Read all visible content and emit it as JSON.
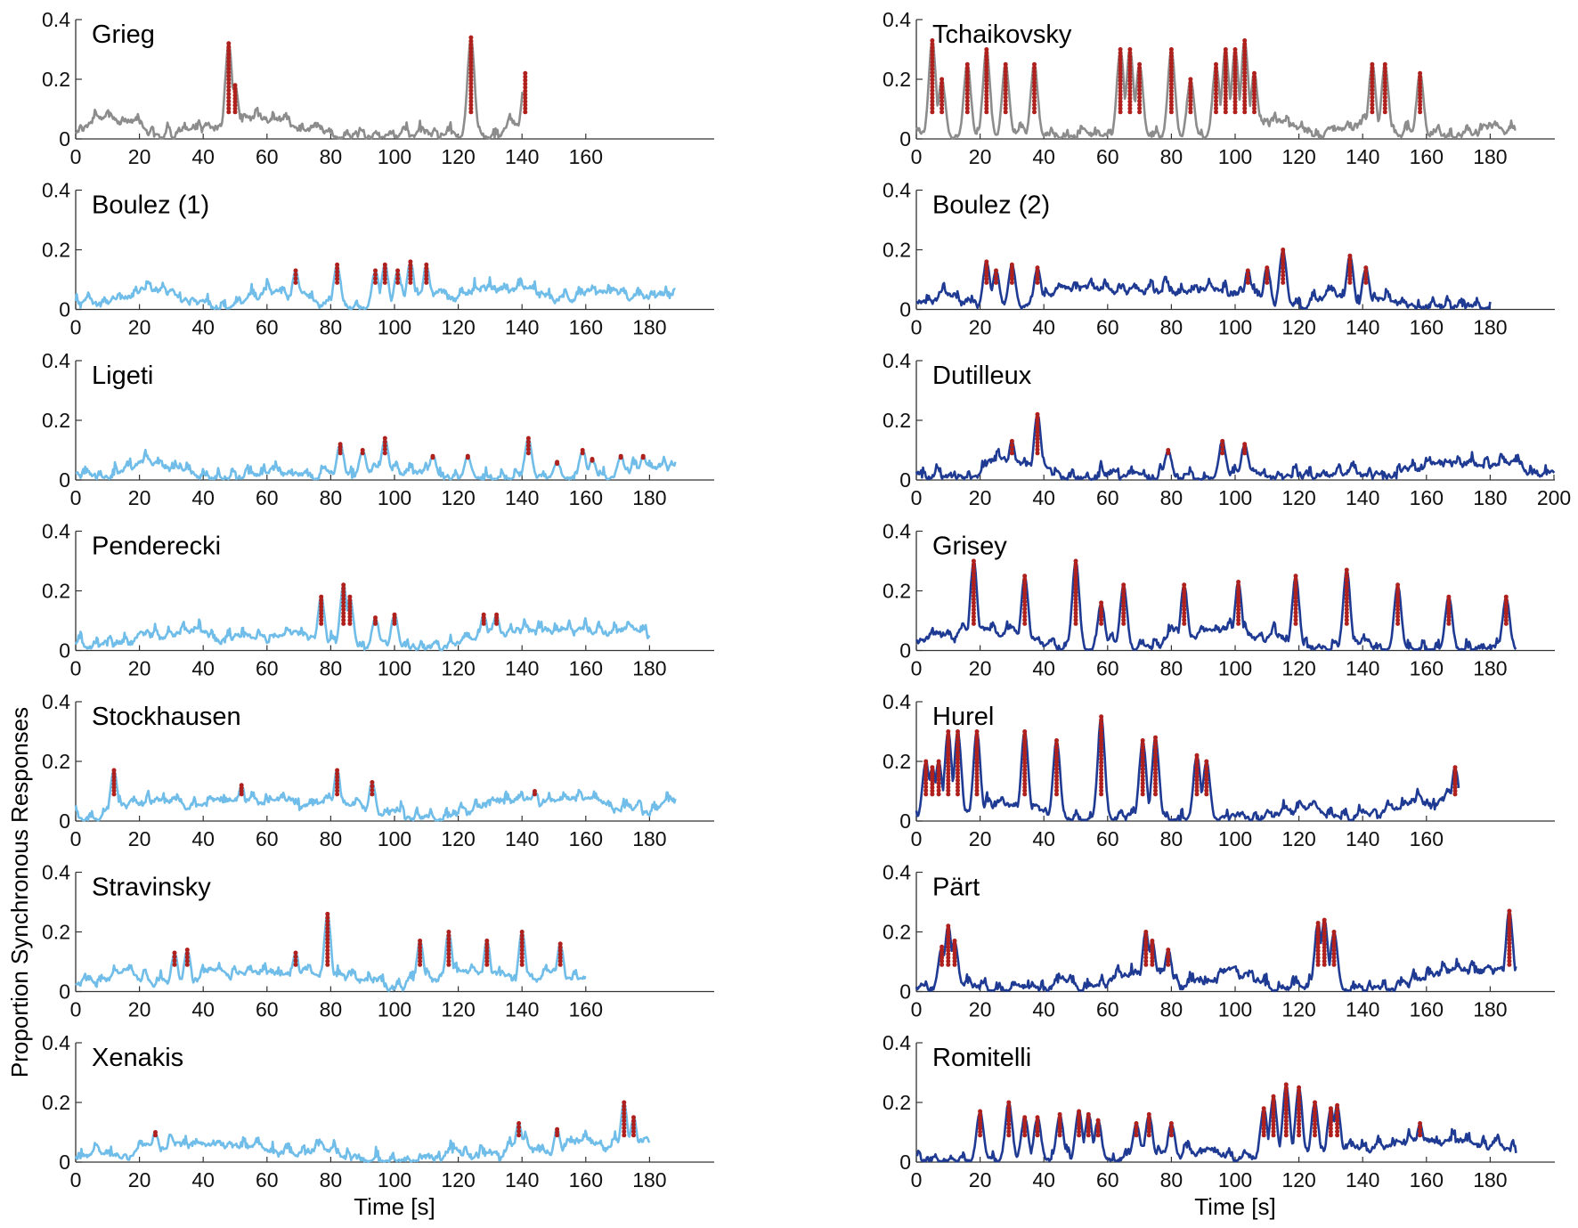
{
  "figure": {
    "ylabel": "Proportion Synchronous Responses",
    "xlabel": "Time [s]"
  },
  "colors": {
    "grey": "#8c8c8c",
    "light_blue": "#6fbde8",
    "dark_blue": "#1f3a93",
    "peak_marker": "#b0201c",
    "axis": "#333333"
  },
  "chart_data": [
    {
      "type": "line",
      "title": "Grieg",
      "color": "grey",
      "duration": 140,
      "ylim": [
        0,
        0.4
      ],
      "yticks": [
        "0.4",
        "0.2",
        "0"
      ],
      "xticks": [
        "0",
        "20",
        "40",
        "60",
        "80",
        "100",
        "120",
        "140",
        "160"
      ],
      "peaks": [
        {
          "t": 48,
          "v": 0.32
        },
        {
          "t": 50,
          "v": 0.18
        },
        {
          "t": 124,
          "v": 0.34
        },
        {
          "t": 141,
          "v": 0.22
        }
      ]
    },
    {
      "type": "line",
      "title": "Tchaikovsky",
      "color": "grey",
      "duration": 188,
      "ylim": [
        0,
        0.4
      ],
      "yticks": [
        "0.4",
        "0.2",
        "0"
      ],
      "xticks": [
        "0",
        "20",
        "40",
        "60",
        "80",
        "100",
        "120",
        "140",
        "160",
        "180"
      ],
      "peaks": [
        {
          "t": 5,
          "v": 0.33
        },
        {
          "t": 8,
          "v": 0.2
        },
        {
          "t": 16,
          "v": 0.25
        },
        {
          "t": 22,
          "v": 0.3
        },
        {
          "t": 28,
          "v": 0.25
        },
        {
          "t": 37,
          "v": 0.25
        },
        {
          "t": 64,
          "v": 0.3
        },
        {
          "t": 67,
          "v": 0.3
        },
        {
          "t": 70,
          "v": 0.25
        },
        {
          "t": 80,
          "v": 0.3
        },
        {
          "t": 86,
          "v": 0.2
        },
        {
          "t": 94,
          "v": 0.25
        },
        {
          "t": 97,
          "v": 0.3
        },
        {
          "t": 100,
          "v": 0.3
        },
        {
          "t": 103,
          "v": 0.33
        },
        {
          "t": 106,
          "v": 0.22
        },
        {
          "t": 143,
          "v": 0.25
        },
        {
          "t": 147,
          "v": 0.25
        },
        {
          "t": 158,
          "v": 0.22
        }
      ]
    },
    {
      "type": "line",
      "title": "Boulez (1)",
      "color": "light_blue",
      "duration": 188,
      "ylim": [
        0,
        0.4
      ],
      "yticks": [
        "0.4",
        "0.2",
        "0"
      ],
      "xticks": [
        "0",
        "20",
        "40",
        "60",
        "80",
        "100",
        "120",
        "140",
        "160",
        "180"
      ],
      "peaks": [
        {
          "t": 69,
          "v": 0.13
        },
        {
          "t": 82,
          "v": 0.15
        },
        {
          "t": 94,
          "v": 0.13
        },
        {
          "t": 97,
          "v": 0.15
        },
        {
          "t": 101,
          "v": 0.13
        },
        {
          "t": 105,
          "v": 0.16
        },
        {
          "t": 110,
          "v": 0.15
        }
      ]
    },
    {
      "type": "line",
      "title": "Boulez (2)",
      "color": "dark_blue",
      "duration": 180,
      "ylim": [
        0,
        0.4
      ],
      "yticks": [
        "0.4",
        "0.2",
        "0"
      ],
      "xticks": [
        "0",
        "20",
        "40",
        "60",
        "80",
        "100",
        "120",
        "140",
        "160",
        "180"
      ],
      "peaks": [
        {
          "t": 22,
          "v": 0.16
        },
        {
          "t": 25,
          "v": 0.13
        },
        {
          "t": 30,
          "v": 0.15
        },
        {
          "t": 38,
          "v": 0.14
        },
        {
          "t": 104,
          "v": 0.13
        },
        {
          "t": 110,
          "v": 0.14
        },
        {
          "t": 115,
          "v": 0.2
        },
        {
          "t": 136,
          "v": 0.18
        },
        {
          "t": 141,
          "v": 0.14
        }
      ]
    },
    {
      "type": "line",
      "title": "Ligeti",
      "color": "light_blue",
      "duration": 188,
      "ylim": [
        0,
        0.4
      ],
      "yticks": [
        "0.4",
        "0.2",
        "0"
      ],
      "xticks": [
        "0",
        "20",
        "40",
        "60",
        "80",
        "100",
        "120",
        "140",
        "160",
        "180"
      ],
      "peaks": [
        {
          "t": 83,
          "v": 0.12
        },
        {
          "t": 90,
          "v": 0.1
        },
        {
          "t": 97,
          "v": 0.14
        },
        {
          "t": 112,
          "v": 0.08
        },
        {
          "t": 123,
          "v": 0.08
        },
        {
          "t": 142,
          "v": 0.14
        },
        {
          "t": 151,
          "v": 0.06
        },
        {
          "t": 159,
          "v": 0.1
        },
        {
          "t": 162,
          "v": 0.07
        },
        {
          "t": 171,
          "v": 0.08
        },
        {
          "t": 178,
          "v": 0.08
        }
      ]
    },
    {
      "type": "line",
      "title": "Dutilleux",
      "color": "dark_blue",
      "duration": 200,
      "ylim": [
        0,
        0.4
      ],
      "yticks": [
        "0.4",
        "0.2",
        "0"
      ],
      "xticks": [
        "0",
        "20",
        "40",
        "60",
        "80",
        "100",
        "120",
        "140",
        "160",
        "180",
        "200"
      ],
      "peaks": [
        {
          "t": 30,
          "v": 0.13
        },
        {
          "t": 38,
          "v": 0.22
        },
        {
          "t": 79,
          "v": 0.1
        },
        {
          "t": 96,
          "v": 0.13
        },
        {
          "t": 103,
          "v": 0.12
        }
      ]
    },
    {
      "type": "line",
      "title": "Penderecki",
      "color": "light_blue",
      "duration": 180,
      "ylim": [
        0,
        0.4
      ],
      "yticks": [
        "0.4",
        "0.2",
        "0"
      ],
      "xticks": [
        "0",
        "20",
        "40",
        "60",
        "80",
        "100",
        "120",
        "140",
        "160",
        "180"
      ],
      "peaks": [
        {
          "t": 77,
          "v": 0.18
        },
        {
          "t": 84,
          "v": 0.22
        },
        {
          "t": 86,
          "v": 0.18
        },
        {
          "t": 94,
          "v": 0.11
        },
        {
          "t": 100,
          "v": 0.12
        },
        {
          "t": 128,
          "v": 0.12
        },
        {
          "t": 132,
          "v": 0.12
        }
      ]
    },
    {
      "type": "line",
      "title": "Grisey",
      "color": "dark_blue",
      "duration": 188,
      "ylim": [
        0,
        0.4
      ],
      "yticks": [
        "0.4",
        "0.2",
        "0"
      ],
      "xticks": [
        "0",
        "20",
        "40",
        "60",
        "80",
        "100",
        "120",
        "140",
        "160",
        "180"
      ],
      "peaks": [
        {
          "t": 18,
          "v": 0.3
        },
        {
          "t": 34,
          "v": 0.25
        },
        {
          "t": 50,
          "v": 0.3
        },
        {
          "t": 58,
          "v": 0.16
        },
        {
          "t": 65,
          "v": 0.22
        },
        {
          "t": 84,
          "v": 0.22
        },
        {
          "t": 101,
          "v": 0.23
        },
        {
          "t": 119,
          "v": 0.25
        },
        {
          "t": 135,
          "v": 0.27
        },
        {
          "t": 151,
          "v": 0.22
        },
        {
          "t": 167,
          "v": 0.18
        },
        {
          "t": 185,
          "v": 0.18
        }
      ]
    },
    {
      "type": "line",
      "title": "Stockhausen",
      "color": "light_blue",
      "duration": 188,
      "ylim": [
        0,
        0.4
      ],
      "yticks": [
        "0.4",
        "0.2",
        "0"
      ],
      "xticks": [
        "0",
        "20",
        "40",
        "60",
        "80",
        "100",
        "120",
        "140",
        "160",
        "180"
      ],
      "peaks": [
        {
          "t": 12,
          "v": 0.17
        },
        {
          "t": 52,
          "v": 0.12
        },
        {
          "t": 82,
          "v": 0.17
        },
        {
          "t": 93,
          "v": 0.13
        },
        {
          "t": 144,
          "v": 0.1
        }
      ]
    },
    {
      "type": "line",
      "title": "Hurel",
      "color": "dark_blue",
      "duration": 170,
      "ylim": [
        0,
        0.4
      ],
      "yticks": [
        "0.4",
        "0.2",
        "0"
      ],
      "xticks": [
        "0",
        "20",
        "40",
        "60",
        "80",
        "100",
        "120",
        "140",
        "160"
      ],
      "peaks": [
        {
          "t": 3,
          "v": 0.2
        },
        {
          "t": 5,
          "v": 0.18
        },
        {
          "t": 7,
          "v": 0.2
        },
        {
          "t": 10,
          "v": 0.3
        },
        {
          "t": 13,
          "v": 0.3
        },
        {
          "t": 19,
          "v": 0.3
        },
        {
          "t": 34,
          "v": 0.3
        },
        {
          "t": 44,
          "v": 0.27
        },
        {
          "t": 58,
          "v": 0.35
        },
        {
          "t": 71,
          "v": 0.27
        },
        {
          "t": 75,
          "v": 0.28
        },
        {
          "t": 88,
          "v": 0.22
        },
        {
          "t": 91,
          "v": 0.2
        },
        {
          "t": 169,
          "v": 0.18
        }
      ]
    },
    {
      "type": "line",
      "title": "Stravinsky",
      "color": "light_blue",
      "duration": 160,
      "ylim": [
        0,
        0.4
      ],
      "yticks": [
        "0.4",
        "0.2",
        "0"
      ],
      "xticks": [
        "0",
        "20",
        "40",
        "60",
        "80",
        "100",
        "120",
        "140",
        "160"
      ],
      "peaks": [
        {
          "t": 31,
          "v": 0.13
        },
        {
          "t": 35,
          "v": 0.14
        },
        {
          "t": 69,
          "v": 0.13
        },
        {
          "t": 79,
          "v": 0.26
        },
        {
          "t": 108,
          "v": 0.17
        },
        {
          "t": 117,
          "v": 0.2
        },
        {
          "t": 129,
          "v": 0.17
        },
        {
          "t": 140,
          "v": 0.2
        },
        {
          "t": 152,
          "v": 0.16
        }
      ]
    },
    {
      "type": "line",
      "title": "Pärt",
      "color": "dark_blue",
      "duration": 188,
      "ylim": [
        0,
        0.4
      ],
      "yticks": [
        "0.4",
        "0.2",
        "0"
      ],
      "xticks": [
        "0",
        "20",
        "40",
        "60",
        "80",
        "100",
        "120",
        "140",
        "160",
        "180"
      ],
      "peaks": [
        {
          "t": 8,
          "v": 0.15
        },
        {
          "t": 10,
          "v": 0.22
        },
        {
          "t": 12,
          "v": 0.17
        },
        {
          "t": 72,
          "v": 0.2
        },
        {
          "t": 74,
          "v": 0.17
        },
        {
          "t": 79,
          "v": 0.14
        },
        {
          "t": 126,
          "v": 0.23
        },
        {
          "t": 128,
          "v": 0.24
        },
        {
          "t": 131,
          "v": 0.2
        },
        {
          "t": 186,
          "v": 0.27
        }
      ]
    },
    {
      "type": "line",
      "title": "Xenakis",
      "color": "light_blue",
      "duration": 180,
      "ylim": [
        0,
        0.4
      ],
      "yticks": [
        "0.4",
        "0.2",
        "0"
      ],
      "xticks": [
        "0",
        "20",
        "40",
        "60",
        "80",
        "100",
        "120",
        "140",
        "160",
        "180"
      ],
      "peaks": [
        {
          "t": 25,
          "v": 0.1
        },
        {
          "t": 139,
          "v": 0.13
        },
        {
          "t": 151,
          "v": 0.11
        },
        {
          "t": 172,
          "v": 0.2
        },
        {
          "t": 175,
          "v": 0.15
        }
      ]
    },
    {
      "type": "line",
      "title": "Romitelli",
      "color": "dark_blue",
      "duration": 188,
      "ylim": [
        0,
        0.4
      ],
      "yticks": [
        "0.4",
        "0.2",
        "0"
      ],
      "xticks": [
        "0",
        "20",
        "40",
        "60",
        "80",
        "100",
        "120",
        "140",
        "160",
        "180"
      ],
      "peaks": [
        {
          "t": 20,
          "v": 0.17
        },
        {
          "t": 29,
          "v": 0.2
        },
        {
          "t": 34,
          "v": 0.15
        },
        {
          "t": 38,
          "v": 0.15
        },
        {
          "t": 45,
          "v": 0.16
        },
        {
          "t": 51,
          "v": 0.17
        },
        {
          "t": 54,
          "v": 0.16
        },
        {
          "t": 57,
          "v": 0.14
        },
        {
          "t": 69,
          "v": 0.13
        },
        {
          "t": 73,
          "v": 0.16
        },
        {
          "t": 80,
          "v": 0.13
        },
        {
          "t": 109,
          "v": 0.18
        },
        {
          "t": 112,
          "v": 0.22
        },
        {
          "t": 116,
          "v": 0.26
        },
        {
          "t": 120,
          "v": 0.25
        },
        {
          "t": 125,
          "v": 0.2
        },
        {
          "t": 130,
          "v": 0.18
        },
        {
          "t": 132,
          "v": 0.19
        },
        {
          "t": 158,
          "v": 0.13
        }
      ]
    }
  ]
}
